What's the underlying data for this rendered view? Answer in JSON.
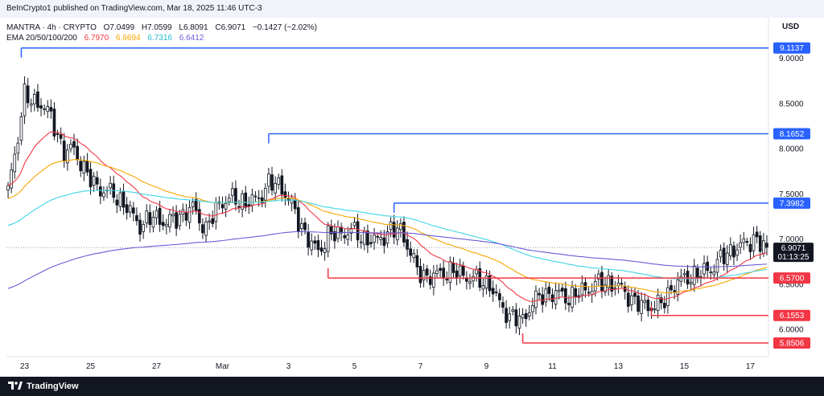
{
  "header": {
    "publish_line": "BeInCrypto1 published on TradingView.com, Mar 18, 2025 11:46 UTC-3",
    "symbol": "MANTRA · 4h · CRYPTO",
    "open": "O7.0499",
    "high": "H7.0599",
    "low": "L6.8091",
    "close": "C6.9071",
    "change": "−0.1427 (−2.02%)",
    "ema_label": "EMA 20/50/100/200",
    "ema20": "6.7970",
    "ema50": "6.6694",
    "ema100": "6.7316",
    "ema200": "6.6412",
    "currency": "USD"
  },
  "footer": {
    "brand": "TradingView",
    "logo_icon": "tradingview-logo-icon"
  },
  "colors": {
    "up": "#ffffff",
    "down": "#131722",
    "ema20": "#f23645",
    "ema50": "#f7a600",
    "ema100": "#3fd5e6",
    "ema200": "#6b5bd6",
    "resistance": "#2962ff",
    "support": "#f23645",
    "price_tag": "#131722"
  },
  "chart_data": {
    "type": "candlestick",
    "timeframe": "4h",
    "ylim": [
      5.7,
      9.2
    ],
    "x_ticks": [
      "23",
      "25",
      "27",
      "Mar",
      "3",
      "5",
      "7",
      "9",
      "11",
      "13",
      "15",
      "17"
    ],
    "y_ticks": [
      "9.0000",
      "8.5000",
      "8.0000",
      "7.5000",
      "7.0000",
      "6.5000",
      "6.0000"
    ],
    "current_price": {
      "value": 6.9071,
      "label": "6.9071",
      "countdown": "01:13:25"
    },
    "levels": [
      {
        "value": 9.1137,
        "label": "9.1137",
        "kind": "resistance",
        "start_index": 4
      },
      {
        "value": 8.1652,
        "label": "8.1652",
        "kind": "resistance",
        "start_index": 79
      },
      {
        "value": 7.3982,
        "label": "7.3982",
        "kind": "resistance",
        "start_index": 117
      },
      {
        "value": 6.57,
        "label": "6.5700",
        "kind": "support",
        "start_index": 97
      },
      {
        "value": 6.1553,
        "label": "6.1553",
        "kind": "support",
        "start_index": 195
      },
      {
        "value": 5.8506,
        "label": "5.8506",
        "kind": "support",
        "start_index": 156
      }
    ],
    "anchors": [
      [
        0,
        7.52
      ],
      [
        3,
        8.15
      ],
      [
        5,
        8.6
      ],
      [
        7,
        8.52
      ],
      [
        10,
        8.5
      ],
      [
        13,
        8.35
      ],
      [
        17,
        7.95
      ],
      [
        20,
        8.0
      ],
      [
        24,
        7.7
      ],
      [
        28,
        7.55
      ],
      [
        32,
        7.5
      ],
      [
        36,
        7.35
      ],
      [
        40,
        7.15
      ],
      [
        44,
        7.25
      ],
      [
        48,
        7.18
      ],
      [
        52,
        7.25
      ],
      [
        56,
        7.35
      ],
      [
        60,
        7.1
      ],
      [
        64,
        7.4
      ],
      [
        68,
        7.45
      ],
      [
        72,
        7.4
      ],
      [
        76,
        7.45
      ],
      [
        79,
        7.62
      ],
      [
        82,
        7.6
      ],
      [
        85,
        7.45
      ],
      [
        88,
        7.2
      ],
      [
        91,
        7.0
      ],
      [
        94,
        6.85
      ],
      [
        97,
        7.05
      ],
      [
        100,
        7.05
      ],
      [
        104,
        7.1
      ],
      [
        108,
        7.0
      ],
      [
        112,
        6.98
      ],
      [
        116,
        7.1
      ],
      [
        119,
        7.1
      ],
      [
        122,
        6.85
      ],
      [
        124,
        6.65
      ],
      [
        127,
        6.58
      ],
      [
        130,
        6.6
      ],
      [
        134,
        6.65
      ],
      [
        138,
        6.6
      ],
      [
        142,
        6.55
      ],
      [
        146,
        6.5
      ],
      [
        149,
        6.28
      ],
      [
        152,
        6.15
      ],
      [
        156,
        6.1
      ],
      [
        159,
        6.3
      ],
      [
        162,
        6.38
      ],
      [
        166,
        6.4
      ],
      [
        170,
        6.35
      ],
      [
        174,
        6.42
      ],
      [
        178,
        6.5
      ],
      [
        182,
        6.52
      ],
      [
        186,
        6.45
      ],
      [
        190,
        6.3
      ],
      [
        194,
        6.25
      ],
      [
        198,
        6.28
      ],
      [
        202,
        6.5
      ],
      [
        206,
        6.58
      ],
      [
        210,
        6.62
      ],
      [
        214,
        6.7
      ],
      [
        218,
        6.85
      ],
      [
        222,
        6.92
      ],
      [
        226,
        7.0
      ],
      [
        230,
        6.9
      ]
    ],
    "series": [
      {
        "name": "EMA 20",
        "period": 20
      },
      {
        "name": "EMA 50",
        "period": 50
      },
      {
        "name": "EMA 100",
        "period": 100
      },
      {
        "name": "EMA 200",
        "period": 200
      }
    ]
  }
}
